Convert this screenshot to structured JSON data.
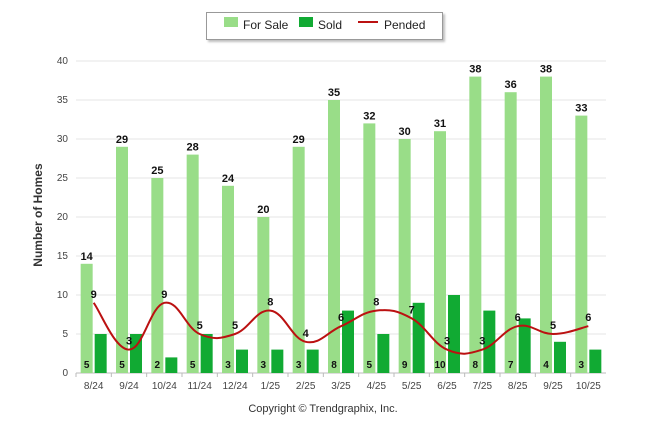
{
  "legend": {
    "for_sale": "For Sale",
    "sold": "Sold",
    "pended": "Pended"
  },
  "colors": {
    "for_sale": "#99dd88",
    "sold": "#11aa33",
    "pended": "#bb1111"
  },
  "copyright": "Copyright © Trendgraphix, Inc.",
  "chart_data": {
    "type": "bar",
    "title": "",
    "xlabel": "",
    "ylabel": "Number of Homes",
    "ylim": [
      0,
      40
    ],
    "yticks": [
      0,
      5,
      10,
      15,
      20,
      25,
      30,
      35,
      40
    ],
    "grid": true,
    "legend_position": "top-center",
    "categories": [
      "8/24",
      "9/24",
      "10/24",
      "11/24",
      "12/24",
      "1/25",
      "2/25",
      "3/25",
      "4/25",
      "5/25",
      "6/25",
      "7/25",
      "8/25",
      "9/25",
      "10/25"
    ],
    "series": [
      {
        "name": "For Sale",
        "type": "bar",
        "values": [
          14,
          29,
          25,
          28,
          24,
          20,
          29,
          35,
          32,
          30,
          31,
          38,
          36,
          38,
          33
        ]
      },
      {
        "name": "Sold",
        "type": "bar",
        "values": [
          5,
          5,
          2,
          5,
          3,
          3,
          3,
          8,
          5,
          9,
          10,
          8,
          7,
          4,
          3
        ]
      },
      {
        "name": "Pended",
        "type": "line",
        "values": [
          9,
          3,
          9,
          5,
          5,
          8,
          4,
          6,
          8,
          7,
          3,
          3,
          6,
          5,
          6
        ]
      }
    ]
  }
}
